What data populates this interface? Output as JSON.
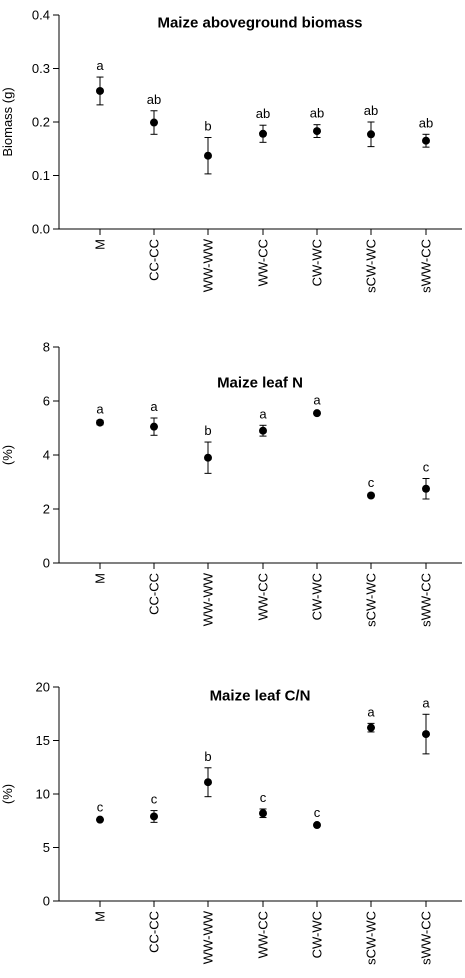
{
  "chart_data": [
    {
      "type": "scatter",
      "title": "Maize aboveground biomass",
      "ylabel": "Biomass (g)",
      "xlabel": "",
      "categories": [
        "M",
        "CC-CC",
        "WW-WW",
        "WW-CC",
        "CW-WC",
        "sCW-WC",
        "sWW-CC"
      ],
      "values": [
        0.258,
        0.199,
        0.137,
        0.178,
        0.183,
        0.177,
        0.165
      ],
      "errors": [
        0.026,
        0.022,
        0.034,
        0.016,
        0.012,
        0.023,
        0.012
      ],
      "letters": [
        "a",
        "ab",
        "b",
        "ab",
        "ab",
        "ab",
        "ab"
      ],
      "ylim": [
        0,
        0.4
      ],
      "yticks": [
        "0.0",
        "0.1",
        "0.2",
        "0.3",
        "0.4"
      ],
      "ytick_values": [
        0,
        0.1,
        0.2,
        0.3,
        0.4
      ],
      "grid": false,
      "legend": "none"
    },
    {
      "type": "scatter",
      "title": "Maize leaf N",
      "ylabel": "(%)",
      "xlabel": "",
      "categories": [
        "M",
        "CC-CC",
        "WW-WW",
        "WW-CC",
        "CW-WC",
        "sCW-WC",
        "sWW-CC"
      ],
      "values": [
        5.2,
        5.05,
        3.9,
        4.9,
        5.55,
        2.5,
        2.75
      ],
      "errors": [
        0.08,
        0.32,
        0.58,
        0.2,
        0.06,
        0.06,
        0.38
      ],
      "letters": [
        "a",
        "a",
        "b",
        "a",
        "a",
        "c",
        "c"
      ],
      "ylim": [
        0,
        8
      ],
      "yticks": [
        "0",
        "2",
        "4",
        "6",
        "8"
      ],
      "ytick_values": [
        0,
        2,
        4,
        6,
        8
      ],
      "grid": false,
      "legend": "none"
    },
    {
      "type": "scatter",
      "title": "Maize leaf C/N",
      "ylabel": "(%)",
      "xlabel": "",
      "categories": [
        "M",
        "CC-CC",
        "WW-WW",
        "WW-CC",
        "CW-WC",
        "sCW-WC",
        "sWW-CC"
      ],
      "values": [
        7.6,
        7.9,
        11.1,
        8.2,
        7.1,
        16.2,
        15.6
      ],
      "errors": [
        0.1,
        0.55,
        1.35,
        0.4,
        0.1,
        0.4,
        1.85
      ],
      "letters": [
        "c",
        "c",
        "b",
        "c",
        "c",
        "a",
        "a"
      ],
      "ylim": [
        0,
        20
      ],
      "yticks": [
        "0",
        "5",
        "10",
        "15",
        "20"
      ],
      "ytick_values": [
        0,
        5,
        10,
        15,
        20
      ],
      "grid": false,
      "legend": "none"
    }
  ]
}
